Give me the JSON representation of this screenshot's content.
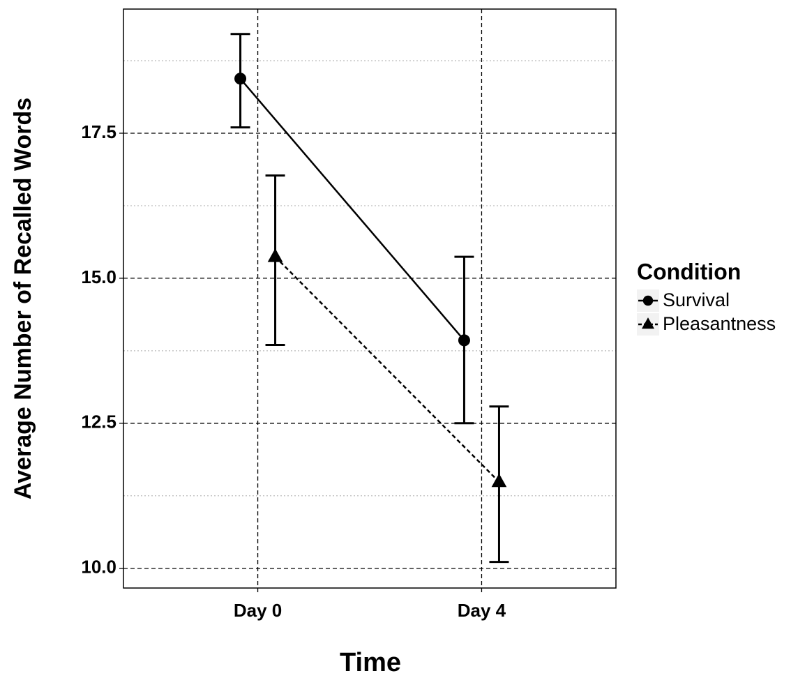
{
  "chart_data": {
    "type": "line",
    "x_label": "Time",
    "y_label": "Average Number of Recalled Words",
    "categories": [
      "Day 0",
      "Day 4"
    ],
    "ylim": [
      9.66,
      19.64
    ],
    "yticks": [
      {
        "value": 10,
        "label": "10.0"
      },
      12.5,
      {
        "value": 15,
        "label": "15.0"
      },
      17.5
    ],
    "minor_yticks": [
      11.25,
      13.75,
      16.25,
      18.75
    ],
    "grid": true,
    "legend_title": "Condition",
    "legend": "right",
    "series": [
      {
        "name": "Survival",
        "color": "#000000",
        "marker": "circle",
        "linestyle": "solid",
        "values": [
          18.44,
          13.93
        ],
        "lower": [
          17.6,
          12.5
        ],
        "upper": [
          19.21,
          15.37
        ]
      },
      {
        "name": "Pleasantness",
        "color": "#000000",
        "marker": "triangle",
        "linestyle": "dashed",
        "values": [
          15.37,
          11.49
        ],
        "lower": [
          13.85,
          10.11
        ],
        "upper": [
          16.77,
          12.79
        ]
      }
    ]
  }
}
